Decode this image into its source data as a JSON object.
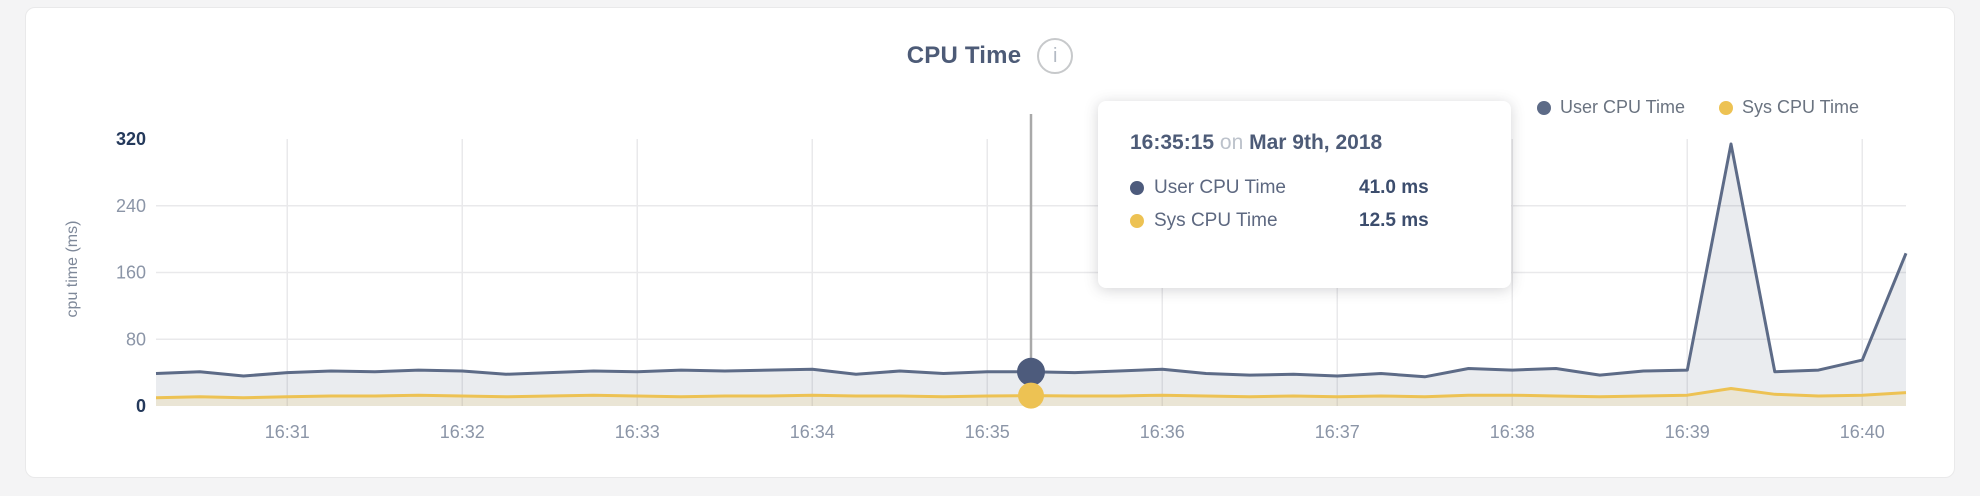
{
  "theme": {
    "page_bg": "#f4f4f5",
    "card_bg": "#ffffff",
    "card_border": "#e9e9ea"
  },
  "header": {
    "title": "CPU Time",
    "info_glyph": "i"
  },
  "legend": {
    "items": [
      {
        "label": "User CPU Time",
        "color": "#5d6b87"
      },
      {
        "label": "Sys CPU Time",
        "color": "#edc253"
      }
    ]
  },
  "tooltip": {
    "time": "16:35:15",
    "on_word": "on",
    "date": "Mar 9th, 2018",
    "rows": [
      {
        "label": "User CPU Time",
        "value": "41.0 ms",
        "color": "#4d5b7c"
      },
      {
        "label": "Sys CPU Time",
        "value": "12.5 ms",
        "color": "#edc253"
      }
    ]
  },
  "chart_data": {
    "type": "area",
    "title": "CPU Time",
    "ylabel": "cpu time (ms)",
    "ylim": [
      0,
      320
    ],
    "yticks": [
      0,
      80,
      160,
      240,
      320
    ],
    "ytick_emphasized": [
      0,
      320
    ],
    "xticks": [
      "16:31",
      "16:32",
      "16:33",
      "16:34",
      "16:35",
      "16:36",
      "16:37",
      "16:38",
      "16:39",
      "16:40"
    ],
    "x_start": "16:30:15",
    "x_end": "16:40:15",
    "interval_seconds": 15,
    "grid": true,
    "legend_position": "top-right",
    "series": [
      {
        "name": "User CPU Time",
        "color": "#5d6b87",
        "fill": "rgba(93,107,135,0.13)",
        "dot_color": "#4d5b7c",
        "values": [
          39,
          41,
          36,
          40,
          42,
          41,
          43,
          42,
          38,
          40,
          42,
          41,
          43,
          42,
          43,
          44,
          38,
          42,
          39,
          41,
          41,
          40,
          42,
          44,
          39,
          37,
          38,
          36,
          39,
          35,
          45,
          43,
          45,
          37,
          42,
          43,
          314,
          41,
          43,
          55,
          183
        ]
      },
      {
        "name": "Sys CPU Time",
        "color": "#edc253",
        "fill": "rgba(237,194,83,0.16)",
        "dot_color": "#edc253",
        "values": [
          10,
          11,
          10,
          11,
          12,
          12,
          13,
          12,
          11,
          12,
          13,
          12,
          11,
          12,
          12,
          13,
          12,
          12,
          11,
          12,
          12.5,
          12,
          12,
          13,
          12,
          11,
          12,
          11,
          12,
          11,
          13,
          13,
          12,
          11,
          12,
          13,
          21,
          14,
          12,
          13,
          16
        ]
      }
    ],
    "hover": {
      "index": 20,
      "time": "16:35:15",
      "values": {
        "User CPU Time": 41.0,
        "Sys CPU Time": 12.5
      }
    },
    "colors": {
      "grid": "#e9e9eb",
      "tick_dark": "#24395b",
      "tick_light": "#8b95a7",
      "hover_line": "#a9a9a9"
    }
  }
}
